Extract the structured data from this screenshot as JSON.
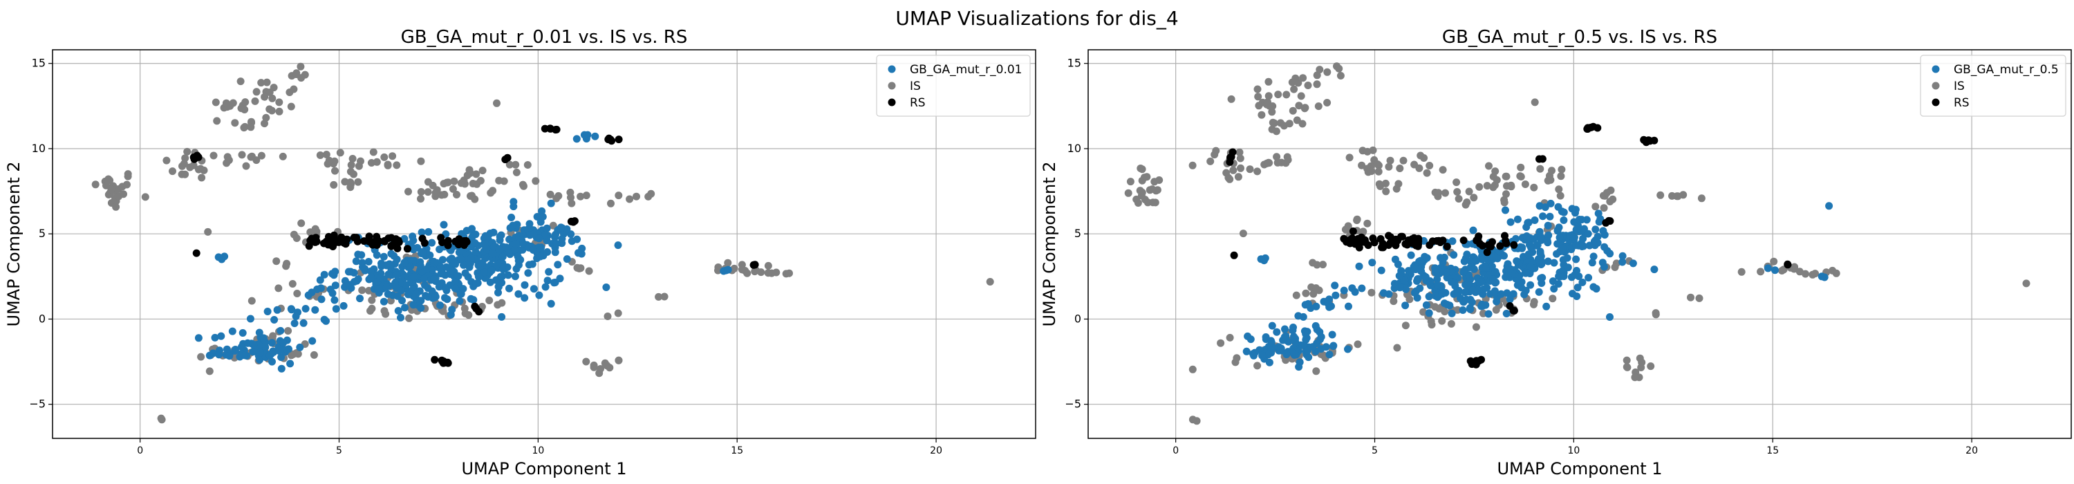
{
  "suptitle": "UMAP Visualizations for dis_4",
  "colors": {
    "primary": "#1f77b4",
    "IS": "#7f7f7f",
    "RS": "#000000",
    "grid": "#b0b0b0"
  },
  "chart_data": [
    {
      "type": "scatter",
      "title": "GB_GA_mut_r_0.01 vs. IS vs. RS",
      "xlabel": "UMAP Component 1",
      "ylabel": "UMAP Component 2",
      "xlim": [
        -2.2,
        22.5
      ],
      "ylim": [
        -7.0,
        15.8
      ],
      "xticks": [
        0,
        5,
        10,
        15,
        20
      ],
      "yticks": [
        -5,
        0,
        5,
        10,
        15
      ],
      "grid": true,
      "legend": "top-right",
      "series": [
        {
          "name": "GB_GA_mut_r_0.01",
          "color": "#1f77b4",
          "clusters": [
            [
              7.8,
              3.0,
              1.4,
              1.0,
              240
            ],
            [
              6.9,
              2.4,
              0.7,
              0.6,
              70
            ],
            [
              8.8,
              3.8,
              0.9,
              0.8,
              80
            ],
            [
              9.9,
              5.2,
              0.5,
              0.7,
              45
            ],
            [
              10.2,
              4.4,
              0.4,
              0.4,
              18
            ],
            [
              7.2,
              1.2,
              0.5,
              0.4,
              20
            ],
            [
              3.0,
              -1.6,
              0.6,
              0.5,
              55
            ],
            [
              2.6,
              -2.0,
              0.4,
              0.2,
              15
            ],
            [
              4.0,
              0.6,
              0.5,
              0.6,
              18
            ],
            [
              4.7,
              1.6,
              0.2,
              0.2,
              6
            ],
            [
              11.2,
              10.7,
              0.3,
              0.1,
              5
            ],
            [
              2.2,
              3.5,
              0.1,
              0.1,
              3
            ],
            [
              14.7,
              2.8,
              0.2,
              0.1,
              3
            ],
            [
              5.8,
              2.0,
              0.3,
              0.3,
              8
            ]
          ]
        },
        {
          "name": "IS",
          "color": "#7f7f7f",
          "clusters": [
            [
              -0.7,
              7.6,
              0.3,
              0.6,
              22
            ],
            [
              1.4,
              9.1,
              0.4,
              0.5,
              18
            ],
            [
              2.6,
              9.3,
              0.3,
              0.2,
              10
            ],
            [
              2.3,
              12.4,
              0.1,
              0.2,
              5
            ],
            [
              3.0,
              13.0,
              0.6,
              0.7,
              25
            ],
            [
              3.9,
              14.5,
              0.2,
              0.2,
              6
            ],
            [
              2.7,
              11.4,
              0.3,
              0.2,
              8
            ],
            [
              4.8,
              9.3,
              0.3,
              0.5,
              10
            ],
            [
              5.9,
              9.2,
              0.5,
              0.4,
              14
            ],
            [
              5.3,
              7.9,
              0.3,
              0.2,
              6
            ],
            [
              7.2,
              7.4,
              0.3,
              0.4,
              10
            ],
            [
              8.1,
              7.9,
              0.4,
              0.5,
              16
            ],
            [
              9.1,
              8.2,
              0.6,
              0.6,
              16
            ],
            [
              10.8,
              7.2,
              0.3,
              0.3,
              8
            ],
            [
              12.6,
              7.2,
              0.5,
              0.1,
              6
            ],
            [
              11.0,
              3.1,
              0.2,
              0.2,
              5
            ],
            [
              13.1,
              1.3,
              0.1,
              0.1,
              2
            ],
            [
              11.9,
              0.3,
              0.1,
              0.1,
              2
            ],
            [
              11.7,
              -2.8,
              0.2,
              0.3,
              10
            ],
            [
              3.0,
              -1.9,
              0.8,
              0.5,
              35
            ],
            [
              3.8,
              1.4,
              0.4,
              0.4,
              10
            ],
            [
              3.6,
              3.3,
              0.1,
              0.1,
              3
            ],
            [
              5.7,
              1.4,
              0.5,
              0.3,
              10
            ],
            [
              7.0,
              0.6,
              0.7,
              0.4,
              20
            ],
            [
              8.5,
              0.8,
              0.5,
              0.3,
              12
            ],
            [
              6.8,
              2.7,
              0.5,
              0.5,
              18
            ],
            [
              15.2,
              3.0,
              0.5,
              0.2,
              14
            ],
            [
              16.0,
              2.7,
              0.3,
              0.1,
              5
            ],
            [
              21.4,
              2.1,
              0.05,
              0.05,
              1
            ],
            [
              0.5,
              -5.9,
              0.05,
              0.05,
              2
            ],
            [
              1.7,
              5.1,
              0.05,
              0.05,
              1
            ],
            [
              9.0,
              12.7,
              0.05,
              0.05,
              1
            ],
            [
              4.5,
              5.1,
              0.3,
              0.3,
              10
            ],
            [
              9.8,
              4.9,
              0.3,
              0.3,
              8
            ]
          ]
        },
        {
          "name": "RS",
          "color": "#000000",
          "clusters": [
            [
              4.8,
              4.6,
              0.3,
              0.2,
              25
            ],
            [
              6.0,
              4.5,
              0.5,
              0.2,
              30
            ],
            [
              7.8,
              4.5,
              0.3,
              0.2,
              15
            ],
            [
              10.4,
              11.2,
              0.1,
              0.05,
              6
            ],
            [
              11.9,
              10.5,
              0.1,
              0.05,
              5
            ],
            [
              7.6,
              -2.5,
              0.1,
              0.1,
              8
            ],
            [
              1.4,
              9.5,
              0.1,
              0.2,
              4
            ],
            [
              1.4,
              3.8,
              0.05,
              0.05,
              1
            ],
            [
              10.9,
              5.7,
              0.05,
              0.05,
              3
            ],
            [
              15.4,
              3.2,
              0.05,
              0.05,
              2
            ],
            [
              8.4,
              0.6,
              0.1,
              0.1,
              3
            ],
            [
              9.2,
              9.4,
              0.05,
              0.05,
              2
            ]
          ]
        }
      ]
    },
    {
      "type": "scatter",
      "title": "GB_GA_mut_r_0.5 vs. IS vs. RS",
      "xlabel": "UMAP Component 1",
      "ylabel": "UMAP Component 2",
      "xlim": [
        -2.2,
        22.5
      ],
      "ylim": [
        -7.0,
        15.8
      ],
      "xticks": [
        0,
        5,
        10,
        15,
        20
      ],
      "yticks": [
        -5,
        0,
        5,
        10,
        15
      ],
      "grid": true,
      "legend": "top-right",
      "series": [
        {
          "name": "GB_GA_mut_r_0.5",
          "color": "#1f77b4",
          "clusters": [
            [
              8.0,
              3.0,
              1.4,
              1.0,
              220
            ],
            [
              6.8,
              2.0,
              0.7,
              0.6,
              60
            ],
            [
              9.2,
              4.4,
              0.8,
              0.8,
              70
            ],
            [
              9.9,
              5.4,
              0.5,
              0.8,
              45
            ],
            [
              7.6,
              1.0,
              0.5,
              0.4,
              22
            ],
            [
              3.0,
              -1.4,
              0.6,
              0.6,
              60
            ],
            [
              2.6,
              -2.0,
              0.4,
              0.2,
              20
            ],
            [
              3.6,
              0.6,
              0.3,
              0.5,
              14
            ],
            [
              4.4,
              1.6,
              0.2,
              0.2,
              6
            ],
            [
              16.4,
              6.7,
              0.05,
              0.05,
              1
            ],
            [
              2.2,
              3.5,
              0.1,
              0.1,
              3
            ],
            [
              15.0,
              3.0,
              0.1,
              0.1,
              2
            ],
            [
              16.2,
              2.5,
              0.1,
              0.1,
              2
            ],
            [
              5.6,
              2.0,
              0.3,
              0.3,
              8
            ]
          ]
        },
        {
          "name": "IS",
          "color": "#7f7f7f",
          "clusters": [
            [
              -0.7,
              7.6,
              0.3,
              0.6,
              22
            ],
            [
              1.4,
              9.1,
              0.4,
              0.5,
              18
            ],
            [
              2.6,
              9.3,
              0.3,
              0.2,
              10
            ],
            [
              2.3,
              12.4,
              0.1,
              0.2,
              5
            ],
            [
              3.0,
              13.0,
              0.6,
              0.7,
              25
            ],
            [
              3.9,
              14.5,
              0.2,
              0.2,
              6
            ],
            [
              2.7,
              11.4,
              0.3,
              0.2,
              8
            ],
            [
              4.8,
              9.3,
              0.3,
              0.5,
              10
            ],
            [
              5.9,
              9.2,
              0.5,
              0.4,
              14
            ],
            [
              5.3,
              7.9,
              0.3,
              0.2,
              6
            ],
            [
              7.2,
              7.4,
              0.3,
              0.4,
              10
            ],
            [
              8.1,
              7.9,
              0.4,
              0.5,
              16
            ],
            [
              9.1,
              8.2,
              0.6,
              0.6,
              16
            ],
            [
              10.8,
              7.2,
              0.3,
              0.3,
              8
            ],
            [
              12.6,
              7.2,
              0.5,
              0.1,
              6
            ],
            [
              11.0,
              3.1,
              0.2,
              0.2,
              5
            ],
            [
              13.1,
              1.3,
              0.1,
              0.1,
              2
            ],
            [
              11.9,
              0.3,
              0.1,
              0.1,
              2
            ],
            [
              11.7,
              -2.8,
              0.2,
              0.3,
              10
            ],
            [
              3.0,
              -1.9,
              0.8,
              0.5,
              35
            ],
            [
              3.8,
              1.4,
              0.4,
              0.4,
              10
            ],
            [
              3.6,
              3.3,
              0.1,
              0.1,
              3
            ],
            [
              5.7,
              1.4,
              0.5,
              0.3,
              10
            ],
            [
              7.0,
              0.6,
              0.7,
              0.4,
              20
            ],
            [
              8.5,
              0.8,
              0.5,
              0.3,
              12
            ],
            [
              6.8,
              2.7,
              0.5,
              0.5,
              18
            ],
            [
              15.2,
              3.0,
              0.5,
              0.2,
              14
            ],
            [
              16.0,
              2.7,
              0.3,
              0.1,
              5
            ],
            [
              21.4,
              2.1,
              0.05,
              0.05,
              1
            ],
            [
              0.5,
              -5.9,
              0.05,
              0.05,
              2
            ],
            [
              1.7,
              5.1,
              0.05,
              0.05,
              1
            ],
            [
              9.0,
              12.7,
              0.05,
              0.05,
              1
            ],
            [
              4.5,
              5.1,
              0.3,
              0.3,
              10
            ],
            [
              9.8,
              4.9,
              0.3,
              0.3,
              8
            ]
          ]
        },
        {
          "name": "RS",
          "color": "#000000",
          "clusters": [
            [
              4.8,
              4.6,
              0.3,
              0.2,
              25
            ],
            [
              6.0,
              4.5,
              0.5,
              0.2,
              30
            ],
            [
              7.8,
              4.5,
              0.3,
              0.2,
              15
            ],
            [
              10.4,
              11.2,
              0.1,
              0.05,
              6
            ],
            [
              11.9,
              10.5,
              0.1,
              0.05,
              5
            ],
            [
              7.6,
              -2.5,
              0.1,
              0.1,
              8
            ],
            [
              1.4,
              9.5,
              0.1,
              0.2,
              4
            ],
            [
              1.4,
              3.8,
              0.05,
              0.05,
              1
            ],
            [
              10.9,
              5.7,
              0.05,
              0.05,
              3
            ],
            [
              15.4,
              3.2,
              0.05,
              0.05,
              2
            ],
            [
              8.4,
              0.6,
              0.1,
              0.1,
              3
            ],
            [
              9.2,
              9.4,
              0.05,
              0.05,
              2
            ]
          ]
        }
      ]
    }
  ]
}
